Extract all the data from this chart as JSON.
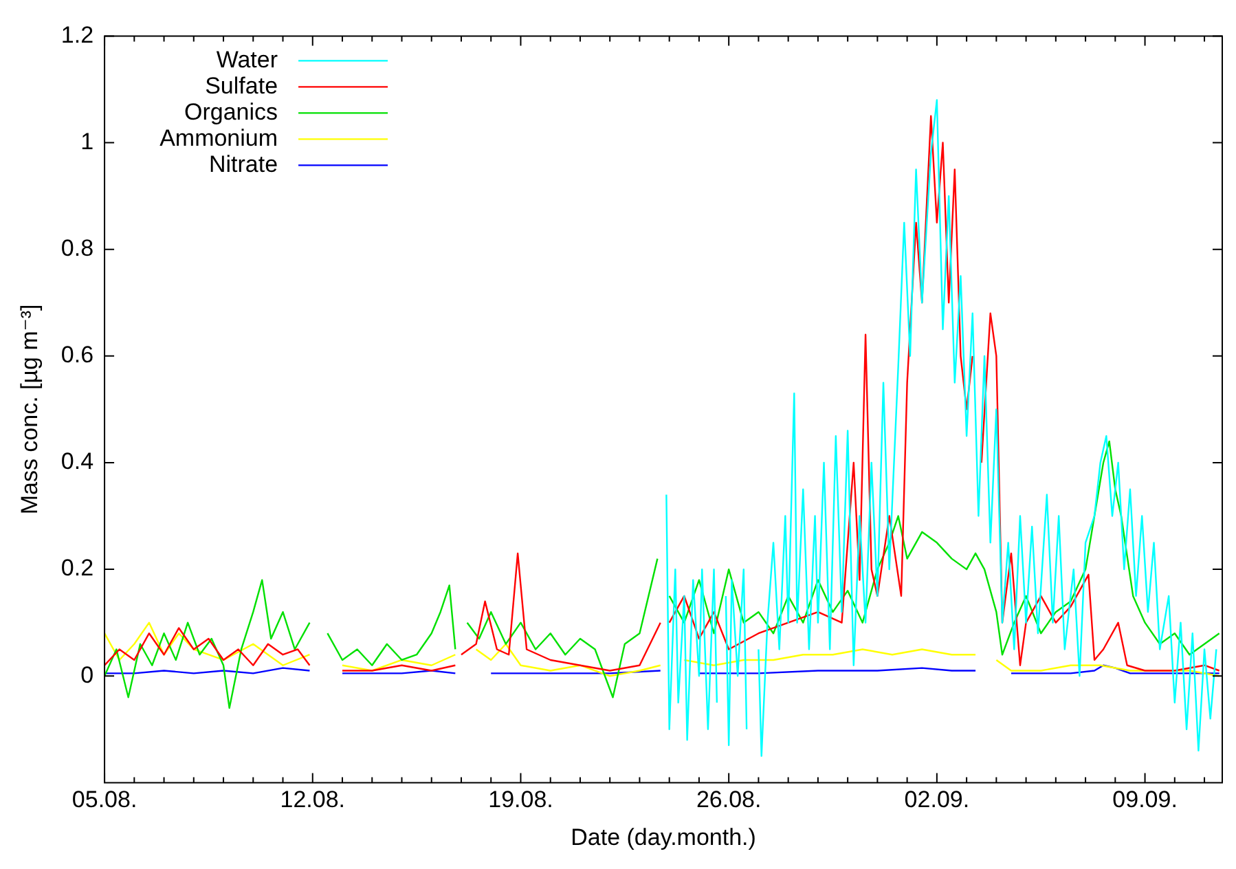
{
  "chart_data": {
    "type": "line",
    "xlabel": "Date (day.month.)",
    "ylabel": "Mass conc. [µg m⁻³]",
    "xlim": [
      "--08-05",
      "--09-11T14:24"
    ],
    "ylim": [
      -0.2,
      1.2
    ],
    "xticks": [
      {
        "value": "--08-05",
        "label": "05.08."
      },
      {
        "value": "--08-06",
        "label": null
      },
      {
        "value": "--08-07",
        "label": null
      },
      {
        "value": "--08-08",
        "label": null
      },
      {
        "value": "--08-09",
        "label": null
      },
      {
        "value": "--08-10",
        "label": null
      },
      {
        "value": "--08-11",
        "label": null
      },
      {
        "value": "--08-12",
        "label": "12.08."
      },
      {
        "value": "--08-13",
        "label": null
      },
      {
        "value": "--08-14",
        "label": null
      },
      {
        "value": "--08-15",
        "label": null
      },
      {
        "value": "--08-16",
        "label": null
      },
      {
        "value": "--08-17",
        "label": null
      },
      {
        "value": "--08-18",
        "label": null
      },
      {
        "value": "--08-19",
        "label": "19.08."
      },
      {
        "value": "--08-20",
        "label": null
      },
      {
        "value": "--08-21",
        "label": null
      },
      {
        "value": "--08-22",
        "label": null
      },
      {
        "value": "--08-23",
        "label": null
      },
      {
        "value": "--08-24",
        "label": null
      },
      {
        "value": "--08-25",
        "label": null
      },
      {
        "value": "--08-26",
        "label": "26.08."
      },
      {
        "value": "--08-27",
        "label": null
      },
      {
        "value": "--08-28",
        "label": null
      },
      {
        "value": "--08-29",
        "label": null
      },
      {
        "value": "--08-30",
        "label": null
      },
      {
        "value": "--08-31",
        "label": null
      },
      {
        "value": "--09-01",
        "label": null
      },
      {
        "value": "--09-02",
        "label": "02.09."
      },
      {
        "value": "--09-03",
        "label": null
      },
      {
        "value": "--09-04",
        "label": null
      },
      {
        "value": "--09-05",
        "label": null
      },
      {
        "value": "--09-06",
        "label": null
      },
      {
        "value": "--09-07",
        "label": null
      },
      {
        "value": "--09-08",
        "label": null
      },
      {
        "value": "--09-09",
        "label": "09.09."
      },
      {
        "value": "--09-10",
        "label": null
      },
      {
        "value": "--09-11",
        "label": null
      }
    ],
    "yticks": [
      0,
      0.2,
      0.4,
      0.6,
      0.8,
      1,
      1.2
    ],
    "grid": false,
    "legend": "top left",
    "series": [
      {
        "name": "Water",
        "color": "#00ffff",
        "x": [
          "--08-23T21:36",
          "--08-24T00:00",
          "--08-24T04:48",
          "--08-24T07:12",
          "--08-24T12:00",
          "--08-24T14:24",
          "--08-24T19:12",
          "--08-25T00:00",
          "--08-25T02:24",
          "--08-25T07:12",
          "--08-25T12:00",
          "--08-25T14:24",
          "--08-25T19:12",
          "--08-25T21:36",
          "--08-26T00:00",
          "--08-26T02:24",
          "--08-26T07:12",
          "--08-26T12:00",
          "--08-26T14:24",
          "--08-26T19:12",
          "--08-26T21:36",
          "--08-27T00:00",
          "--08-27T02:24",
          "--08-27T07:12",
          "--08-27T12:00",
          "--08-27T16:48",
          "--08-27T21:36",
          "--08-28T00:00",
          "--08-28T04:48",
          "--08-28T07:12",
          "--08-28T12:00",
          "--08-28T16:48",
          "--08-28T21:36",
          "--08-29T00:00",
          "--08-29T04:48",
          "--08-29T09:36",
          "--08-29T14:24",
          "--08-29T19:12",
          "--08-30T00:00",
          "--08-30T04:48",
          "--08-30T09:36",
          "--08-30T14:24",
          "--08-30T19:12",
          "--08-31T00:00",
          "--08-31T04:48",
          "--08-31T09:36",
          "--08-31T16:48",
          "--08-31T21:36",
          "--09-01T02:24",
          "--09-01T07:12",
          "--09-01T12:00",
          "--09-01T19:12",
          "--09-02T00:00",
          "--09-02T04:48",
          "--09-02T09:36",
          "--09-02T14:24",
          "--09-02T19:12",
          "--09-03T00:00",
          "--09-03T04:48",
          "--09-03T09:36",
          "--09-03T14:24",
          "--09-03T19:12",
          "--09-04T00:00",
          "--09-04T04:48",
          "--09-04T09:36",
          "--09-04T14:24",
          "--09-04T19:12",
          "--09-05T00:00",
          "--09-05T04:48",
          "--09-05T09:36",
          "--09-05T16:48",
          "--09-05T21:36",
          "--09-06T02:24",
          "--09-06T07:12",
          "--09-06T14:24",
          "--09-06T19:12",
          "--09-07T00:00",
          "--09-07T07:12",
          "--09-07T12:00",
          "--09-07T16:48",
          "--09-07T21:36",
          "--09-08T02:24",
          "--09-08T07:12",
          "--09-08T12:00",
          "--09-08T16:48",
          "--09-08T21:36",
          "--09-09T02:24",
          "--09-09T07:12",
          "--09-09T12:00",
          "--09-09T19:12",
          "--09-10T00:00",
          "--09-10T04:48",
          "--09-10T09:36",
          "--09-10T14:24",
          "--09-10T19:12",
          "--09-11T00:00",
          "--09-11T04:48",
          "--09-11T09:36"
        ],
        "values": [
          0.34,
          -0.1,
          0.2,
          -0.05,
          0.15,
          -0.12,
          0.18,
          0.0,
          0.2,
          -0.1,
          0.2,
          -0.05,
          null,
          0.15,
          -0.13,
          0.18,
          0.0,
          0.2,
          -0.1,
          null,
          null,
          0.05,
          -0.15,
          0.1,
          0.25,
          0.05,
          0.3,
          0.1,
          0.53,
          0.1,
          0.35,
          0.05,
          0.3,
          0.1,
          0.4,
          0.05,
          0.45,
          0.12,
          0.46,
          0.02,
          0.3,
          0.1,
          0.4,
          0.15,
          0.55,
          0.2,
          0.58,
          0.85,
          0.6,
          0.95,
          0.7,
          0.98,
          1.08,
          0.65,
          0.9,
          0.55,
          0.75,
          0.45,
          0.68,
          0.3,
          0.6,
          0.25,
          0.5,
          0.1,
          0.25,
          0.05,
          0.3,
          0.1,
          0.28,
          0.08,
          0.34,
          0.1,
          0.3,
          0.05,
          0.2,
          0.0,
          0.25,
          0.3,
          0.4,
          0.45,
          0.3,
          0.4,
          0.2,
          0.35,
          0.15,
          0.3,
          0.12,
          0.25,
          0.05,
          0.15,
          -0.05,
          0.1,
          -0.1,
          0.08,
          -0.14,
          0.05,
          -0.08,
          0.05
        ]
      },
      {
        "name": "Sulfate",
        "color": "#ff0000",
        "x": [
          "--08-05T00:00",
          "--08-05T12:00",
          "--08-06T00:00",
          "--08-06T12:00",
          "--08-07T00:00",
          "--08-07T12:00",
          "--08-08T00:00",
          "--08-08T12:00",
          "--08-09T00:00",
          "--08-09T12:00",
          "--08-10T00:00",
          "--08-10T12:00",
          "--08-11T00:00",
          "--08-11T12:00",
          "--08-11T21:36",
          "--08-12T02:24",
          "--08-13T00:00",
          "--08-14T00:00",
          "--08-15T00:00",
          "--08-16T00:00",
          "--08-16T19:12",
          "--08-16T21:36",
          "--08-17T00:00",
          "--08-17T12:00",
          "--08-17T19:12",
          "--08-18T04:48",
          "--08-18T14:24",
          "--08-18T21:36",
          "--08-19T04:48",
          "--08-20T00:00",
          "--08-21T00:00",
          "--08-22T00:00",
          "--08-23T00:00",
          "--08-23T16:48",
          "--08-23T19:12",
          "--08-24T00:00",
          "--08-24T12:00",
          "--08-25T00:00",
          "--08-25T12:00",
          "--08-26T00:00",
          "--08-27T00:00",
          "--08-28T00:00",
          "--08-29T00:00",
          "--08-29T19:12",
          "--08-30T04:48",
          "--08-30T09:36",
          "--08-30T14:24",
          "--08-30T19:12",
          "--08-31T00:00",
          "--08-31T09:36",
          "--08-31T19:12",
          "--09-01T00:00",
          "--09-01T07:12",
          "--09-01T12:00",
          "--09-01T19:12",
          "--09-02T00:00",
          "--09-02T04:48",
          "--09-02T09:36",
          "--09-02T14:24",
          "--09-02T19:12",
          "--09-03T00:00",
          "--09-03T04:48",
          "--09-03T07:12",
          "--09-03T12:00",
          "--09-03T19:12",
          "--09-04T00:00",
          "--09-04T04:48",
          "--09-04T12:00",
          "--09-04T19:12",
          "--09-05T00:00",
          "--09-05T12:00",
          "--09-06T00:00",
          "--09-06T12:00",
          "--09-07T02:24",
          "--09-07T07:12",
          "--09-07T14:24",
          "--09-08T02:24",
          "--09-08T09:36",
          "--09-09T00:00",
          "--09-10T00:00",
          "--09-11T00:00",
          "--09-11T12:00"
        ],
        "values": [
          0.02,
          0.05,
          0.03,
          0.08,
          0.04,
          0.09,
          0.05,
          0.07,
          0.03,
          0.05,
          0.02,
          0.06,
          0.04,
          0.05,
          0.02,
          null,
          0.01,
          0.01,
          0.02,
          0.01,
          0.02,
          null,
          0.04,
          0.06,
          0.14,
          0.05,
          0.04,
          0.23,
          0.05,
          0.03,
          0.02,
          0.01,
          0.02,
          0.1,
          null,
          0.1,
          0.15,
          0.07,
          0.12,
          0.05,
          0.08,
          0.1,
          0.12,
          0.1,
          0.4,
          0.18,
          0.64,
          0.2,
          0.15,
          0.3,
          0.15,
          0.55,
          0.85,
          0.7,
          1.05,
          0.85,
          1.0,
          0.7,
          0.95,
          0.6,
          0.5,
          0.6,
          null,
          0.4,
          0.68,
          0.6,
          0.1,
          0.23,
          0.02,
          0.1,
          0.15,
          0.1,
          0.13,
          0.19,
          0.03,
          0.05,
          0.1,
          0.02,
          0.01,
          0.01,
          0.02,
          0.01
        ]
      },
      {
        "name": "Organics",
        "color": "#00e000",
        "x": [
          "--08-05T00:00",
          "--08-05T09:36",
          "--08-05T19:12",
          "--08-06T04:48",
          "--08-06T14:24",
          "--08-07T00:00",
          "--08-07T09:36",
          "--08-07T19:12",
          "--08-08T04:48",
          "--08-08T14:24",
          "--08-09T00:00",
          "--08-09T04:48",
          "--08-09T14:24",
          "--08-10T00:00",
          "--08-10T07:12",
          "--08-10T14:24",
          "--08-11T00:00",
          "--08-11T09:36",
          "--08-11T21:36",
          "--08-12T02:24",
          "--08-12T12:00",
          "--08-13T00:00",
          "--08-13T12:00",
          "--08-14T00:00",
          "--08-14T12:00",
          "--08-15T00:00",
          "--08-15T12:00",
          "--08-16T00:00",
          "--08-16T07:12",
          "--08-16T14:24",
          "--08-16T19:12",
          "--08-16T21:36",
          "--08-17T04:48",
          "--08-17T14:24",
          "--08-18T00:00",
          "--08-18T12:00",
          "--08-19T00:00",
          "--08-19T12:00",
          "--08-20T00:00",
          "--08-20T12:00",
          "--08-21T00:00",
          "--08-21T12:00",
          "--08-22T02:24",
          "--08-22T12:00",
          "--08-23T00:00",
          "--08-23T14:24",
          "--08-23T19:12",
          "--08-24T00:00",
          "--08-24T12:00",
          "--08-25T00:00",
          "--08-25T12:00",
          "--08-26T00:00",
          "--08-26T12:00",
          "--08-27T00:00",
          "--08-27T12:00",
          "--08-28T00:00",
          "--08-28T12:00",
          "--08-29T00:00",
          "--08-29T12:00",
          "--08-30T00:00",
          "--08-30T12:00",
          "--08-31T00:00",
          "--08-31T09:36",
          "--08-31T16:48",
          "--09-01T00:00",
          "--09-01T12:00",
          "--09-02T00:00",
          "--09-02T12:00",
          "--09-03T00:00",
          "--09-03T07:12",
          "--09-03T14:24",
          "--09-04T00:00",
          "--09-04T04:48",
          "--09-04T14:24",
          "--09-05T00:00",
          "--09-05T12:00",
          "--09-06T00:00",
          "--09-06T12:00",
          "--09-07T00:00",
          "--09-07T07:12",
          "--09-07T14:24",
          "--09-07T19:12",
          "--09-08T00:00",
          "--09-08T04:48",
          "--09-08T14:24",
          "--09-09T00:00",
          "--09-09T12:00",
          "--09-10T00:00",
          "--09-10T12:00",
          "--09-11T00:00",
          "--09-11T12:00"
        ],
        "values": [
          0.0,
          0.05,
          -0.04,
          0.06,
          0.02,
          0.08,
          0.03,
          0.1,
          0.04,
          0.07,
          0.02,
          -0.06,
          0.05,
          0.12,
          0.18,
          0.07,
          0.12,
          0.05,
          0.1,
          null,
          0.08,
          0.03,
          0.05,
          0.02,
          0.06,
          0.03,
          0.04,
          0.08,
          0.12,
          0.17,
          0.05,
          null,
          0.1,
          0.07,
          0.12,
          0.06,
          0.1,
          0.05,
          0.08,
          0.04,
          0.07,
          0.05,
          -0.04,
          0.06,
          0.08,
          0.22,
          null,
          0.15,
          0.1,
          0.18,
          0.08,
          0.2,
          0.1,
          0.12,
          0.08,
          0.15,
          0.1,
          0.18,
          0.12,
          0.16,
          0.1,
          0.2,
          0.25,
          0.3,
          0.22,
          0.27,
          0.25,
          0.22,
          0.2,
          0.23,
          0.2,
          0.12,
          0.04,
          0.1,
          0.15,
          0.08,
          0.12,
          0.14,
          0.2,
          0.3,
          0.4,
          0.44,
          0.35,
          0.3,
          0.15,
          0.1,
          0.06,
          0.08,
          0.04,
          0.06,
          0.08
        ]
      },
      {
        "name": "Ammonium",
        "color": "#ffff00",
        "x": [
          "--08-05T00:00",
          "--08-05T12:00",
          "--08-06T00:00",
          "--08-06T12:00",
          "--08-07T00:00",
          "--08-07T12:00",
          "--08-08T00:00",
          "--08-09T00:00",
          "--08-10T00:00",
          "--08-11T00:00",
          "--08-11T21:36",
          "--08-12T02:24",
          "--08-13T00:00",
          "--08-14T00:00",
          "--08-15T00:00",
          "--08-16T00:00",
          "--08-16T19:12",
          "--08-16T21:36",
          "--08-17T12:00",
          "--08-18T00:00",
          "--08-18T12:00",
          "--08-19T00:00",
          "--08-20T00:00",
          "--08-21T00:00",
          "--08-22T00:00",
          "--08-23T00:00",
          "--08-23T16:48",
          "--08-23T19:12",
          "--08-24T12:00",
          "--08-25T12:00",
          "--08-26T12:00",
          "--08-27T12:00",
          "--08-28T12:00",
          "--08-29T12:00",
          "--08-30T12:00",
          "--08-31T12:00",
          "--09-01T12:00",
          "--09-02T12:00",
          "--09-03T07:12",
          "--09-03T12:00",
          "--09-04T00:00",
          "--09-04T12:00",
          "--09-05T12:00",
          "--09-06T12:00",
          "--09-07T12:00",
          "--09-08T12:00",
          "--09-09T12:00",
          "--09-10T12:00",
          "--09-11T12:00"
        ],
        "values": [
          0.08,
          0.03,
          0.06,
          0.1,
          0.04,
          0.08,
          0.05,
          0.03,
          0.06,
          0.02,
          0.04,
          null,
          0.02,
          0.01,
          0.03,
          0.02,
          0.04,
          null,
          0.05,
          0.03,
          0.06,
          0.02,
          0.01,
          0.02,
          0.0,
          0.01,
          0.02,
          null,
          0.03,
          0.02,
          0.03,
          0.03,
          0.04,
          0.04,
          0.05,
          0.04,
          0.05,
          0.04,
          0.04,
          null,
          0.03,
          0.01,
          0.01,
          0.02,
          0.02,
          0.01,
          0.01,
          0.01,
          0.0
        ]
      },
      {
        "name": "Nitrate",
        "color": "#0000ff",
        "x": [
          "--08-05T00:00",
          "--08-06T00:00",
          "--08-07T00:00",
          "--08-08T00:00",
          "--08-09T00:00",
          "--08-10T00:00",
          "--08-11T00:00",
          "--08-11T21:36",
          "--08-12T02:24",
          "--08-13T00:00",
          "--08-14T00:00",
          "--08-15T00:00",
          "--08-16T00:00",
          "--08-16T19:12",
          "--08-16T21:36",
          "--08-18T00:00",
          "--08-20T00:00",
          "--08-22T00:00",
          "--08-23T16:48",
          "--08-23T19:12",
          "--08-25T00:00",
          "--08-27T00:00",
          "--08-29T00:00",
          "--08-31T00:00",
          "--09-01T12:00",
          "--09-02T12:00",
          "--09-03T07:12",
          "--09-03T12:00",
          "--09-04T12:00",
          "--09-05T12:00",
          "--09-06T12:00",
          "--09-07T07:12",
          "--09-07T14:24",
          "--09-08T00:00",
          "--09-08T12:00",
          "--09-09T12:00",
          "--09-10T12:00",
          "--09-11T12:00"
        ],
        "values": [
          0.005,
          0.005,
          0.01,
          0.005,
          0.01,
          0.005,
          0.015,
          0.01,
          null,
          0.005,
          0.005,
          0.005,
          0.01,
          0.005,
          null,
          0.005,
          0.005,
          0.005,
          0.01,
          null,
          0.005,
          0.005,
          0.01,
          0.01,
          0.015,
          0.01,
          0.01,
          null,
          0.005,
          0.005,
          0.005,
          0.01,
          0.02,
          0.015,
          0.005,
          0.005,
          0.005,
          0.005
        ]
      }
    ]
  }
}
